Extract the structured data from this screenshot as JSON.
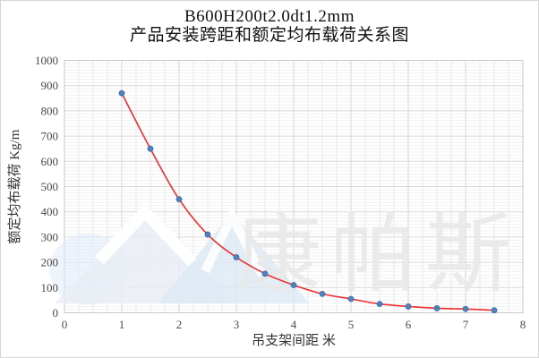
{
  "window": {
    "background": "#ffffff",
    "border_color": "#d6d6d6"
  },
  "watermark": {
    "text": "康帕斯",
    "text_color": "#e9e9e9",
    "logo_blue": "#dbe8f4",
    "logo_gray_blue": "#e8eef5",
    "logo_chevron_color": "#ffffff"
  },
  "chart_data": {
    "type": "scatter",
    "title_lines": [
      "B600H200t2.0dt1.2mm",
      "产品安装跨距和额定均布载荷关系图"
    ],
    "xlabel": "吊支架间距  米",
    "ylabel": "额定均布载荷  Kg/m",
    "x": [
      1,
      1.5,
      2,
      2.5,
      3,
      3.5,
      4,
      4.5,
      5,
      5.5,
      6,
      6.5,
      7,
      7.5
    ],
    "y": [
      870,
      650,
      450,
      310,
      220,
      155,
      110,
      75,
      55,
      35,
      25,
      18,
      15,
      10
    ],
    "xlim": [
      0,
      8
    ],
    "ylim": [
      0,
      1000
    ],
    "xticks": [
      0,
      1,
      2,
      3,
      4,
      5,
      6,
      7,
      8
    ],
    "yticks": [
      0,
      100,
      200,
      300,
      400,
      500,
      600,
      700,
      800,
      900,
      1000
    ],
    "x_minor_step": 0.25,
    "y_minor_step": 12.5,
    "grid": true,
    "legend": false,
    "trend_line": "smooth curve through points",
    "trend_color": "#ee2c2c",
    "point_color": "#4f81bd",
    "point_edge_color": "#3e6da8",
    "major_grid_color": "#d7d7d7",
    "minor_grid_color": "#f1f1f1",
    "tick_label_color": "#4a4a4a",
    "axis_title_color": "#333333"
  }
}
